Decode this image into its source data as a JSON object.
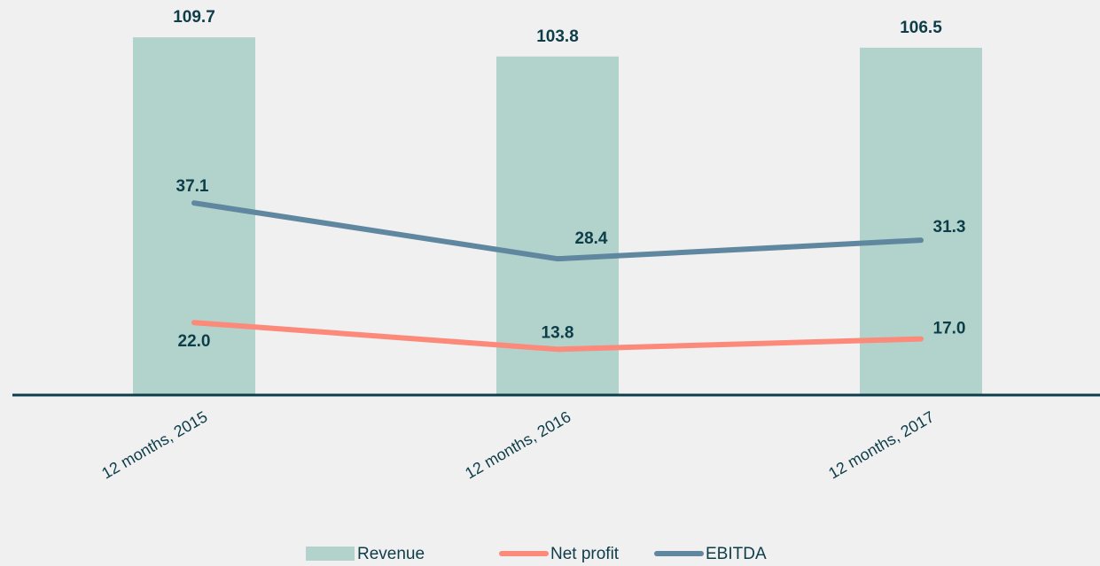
{
  "chart_data": {
    "type": "bar",
    "categories": [
      "12 months, 2015",
      "12 months, 2016",
      "12 months, 2017"
    ],
    "series": [
      {
        "name": "Revenue",
        "type": "bar",
        "color": "#b2d3cb",
        "values": [
          109.7,
          103.8,
          106.5
        ],
        "value_labels": [
          "109.7",
          "103.8",
          "106.5"
        ]
      },
      {
        "name": "Net profit",
        "type": "line",
        "color": "#fc8a7a",
        "values": [
          22.0,
          13.8,
          17.0
        ],
        "value_labels": [
          "22.0",
          "13.8",
          "17.0"
        ]
      },
      {
        "name": "EBITDA",
        "type": "line",
        "axis": "y2",
        "color": "#5f88a0",
        "values": [
          37.1,
          28.4,
          31.3
        ],
        "value_labels": [
          "37.1",
          "28.4",
          "31.3"
        ]
      }
    ],
    "ylim": [
      0,
      113
    ],
    "y2lim": [
      7.3,
      64.6
    ],
    "legend": "bottom"
  }
}
